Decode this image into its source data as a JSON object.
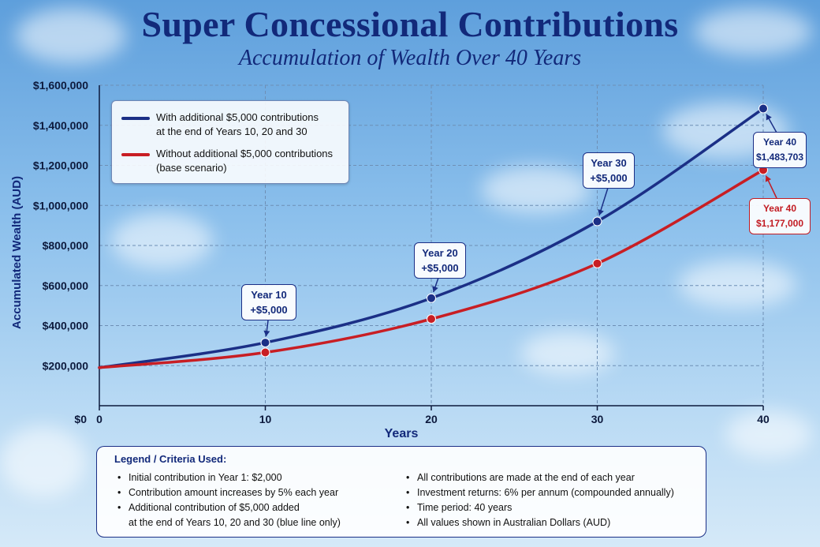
{
  "title": "Super Concessional Contributions",
  "subtitle": "Accumulation of Wealth Over 40 Years",
  "chart_data": {
    "type": "line",
    "title": "Super Concessional Contributions",
    "subtitle": "Accumulation of Wealth Over 40 Years",
    "xlabel": "Years",
    "ylabel": "Accumulated Wealth (AUD)",
    "xlim": [
      0,
      40
    ],
    "ylim": [
      0,
      1600000
    ],
    "x_ticks": [
      "0",
      "10",
      "20",
      "30",
      "40"
    ],
    "y_ticks": [
      "$0",
      "$200,000",
      "$400,000",
      "$600,000",
      "$800,000",
      "$1,000,000",
      "$1,200,000",
      "$1,400,000",
      "$1,600,000"
    ],
    "grid": true,
    "legend_position": "top-left",
    "x": [
      0,
      10,
      20,
      30,
      40
    ],
    "series": [
      {
        "name": "With additional $5,000 contributions at the end of Years 10, 20 and 30",
        "color": "#1b2f86",
        "values": [
          190000,
          315000,
          537000,
          920000,
          1483703
        ]
      },
      {
        "name": "Without additional $5,000 contributions (base scenario)",
        "color": "#c81e24",
        "values": [
          190000,
          266000,
          433000,
          710000,
          1177000
        ]
      }
    ],
    "annotations": [
      {
        "text": [
          "Year 10",
          "+$5,000"
        ],
        "x": 10,
        "series": 0
      },
      {
        "text": [
          "Year 20",
          "+$5,000"
        ],
        "x": 20,
        "series": 0
      },
      {
        "text": [
          "Year 30",
          "+$5,000"
        ],
        "x": 30,
        "series": 0
      },
      {
        "text": [
          "Year 40",
          "$1,483,703"
        ],
        "x": 40,
        "series": 0
      },
      {
        "text": [
          "Year 40",
          "$1,177,000"
        ],
        "x": 40,
        "series": 1
      }
    ]
  },
  "legend": {
    "blue_line1": "With additional $5,000 contributions",
    "blue_line2": "at the end of Years 10, 20 and 30",
    "red_line1": "Without additional $5,000 contributions",
    "red_line2": "(base scenario)"
  },
  "criteria": {
    "title": "Legend / Criteria Used:",
    "left": [
      "Initial contribution in Year 1: $2,000",
      "Contribution amount increases by 5% each year",
      "Additional contribution of $5,000 added",
      "at the end of Years 10, 20 and 30 (blue line only)"
    ],
    "right": [
      "All contributions are made at the end of each year",
      "Investment returns: 6% per annum (compounded annually)",
      "Time period: 40 years",
      "All values shown in Australian Dollars (AUD)"
    ]
  }
}
